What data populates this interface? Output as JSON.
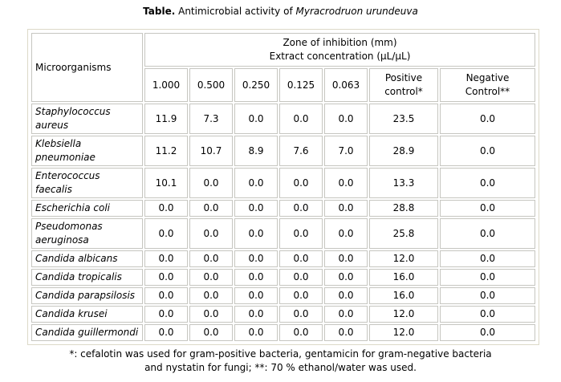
{
  "title": {
    "label": "Table.",
    "text": "Antimicrobial activity of",
    "species": "Myracrodruon urundeuva"
  },
  "header": {
    "organism": "Microorganisms",
    "zone": "Zone of inhibition (mm)",
    "extract": "Extract concentration (µL/µL)",
    "columns": [
      "1.000",
      "0.500",
      "0.250",
      "0.125",
      "0.063"
    ],
    "positive": [
      "Positive",
      "control*"
    ],
    "negative": [
      "Negative",
      "Control**"
    ]
  },
  "rows": [
    {
      "org": "Staphylococcus aureus",
      "v": [
        "11.9",
        "7.3",
        "0.0",
        "0.0",
        "0.0",
        "23.5",
        "0.0"
      ]
    },
    {
      "org": "Klebsiella pneumoniae",
      "v": [
        "11.2",
        "10.7",
        "8.9",
        "7.6",
        "7.0",
        "28.9",
        "0.0"
      ]
    },
    {
      "org": "Enterococcus faecalis",
      "v": [
        "10.1",
        "0.0",
        "0.0",
        "0.0",
        "0.0",
        "13.3",
        "0.0"
      ]
    },
    {
      "org": "Escherichia coli",
      "v": [
        "0.0",
        "0.0",
        "0.0",
        "0.0",
        "0.0",
        "28.8",
        "0.0"
      ]
    },
    {
      "org": "Pseudomonas aeruginosa",
      "v": [
        "0.0",
        "0.0",
        "0.0",
        "0.0",
        "0.0",
        "25.8",
        "0.0"
      ]
    },
    {
      "org": "Candida albicans",
      "v": [
        "0.0",
        "0.0",
        "0.0",
        "0.0",
        "0.0",
        "12.0",
        "0.0"
      ]
    },
    {
      "org": "Candida tropicalis",
      "v": [
        "0.0",
        "0.0",
        "0.0",
        "0.0",
        "0.0",
        "16.0",
        "0.0"
      ]
    },
    {
      "org": "Candida parapsilosis",
      "v": [
        "0.0",
        "0.0",
        "0.0",
        "0.0",
        "0.0",
        "16.0",
        "0.0"
      ]
    },
    {
      "org": "Candida krusei",
      "v": [
        "0.0",
        "0.0",
        "0.0",
        "0.0",
        "0.0",
        "12.0",
        "0.0"
      ]
    },
    {
      "org": "Candida guillermondi",
      "v": [
        "0.0",
        "0.0",
        "0.0",
        "0.0",
        "0.0",
        "12.0",
        "0.0"
      ]
    }
  ],
  "footnote": [
    "*: cefalotin was used for gram-positive bacteria, gentamicin for gram-negative bacteria",
    "and nystatin for fungi; **: 70 % ethanol/water was used."
  ]
}
